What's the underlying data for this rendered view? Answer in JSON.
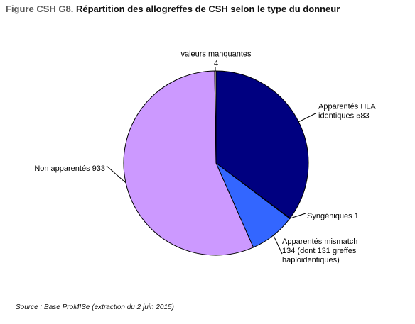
{
  "title": {
    "prefix": "Figure CSH G8.",
    "text": "Répartition des allogreffes de CSH selon le type du donneur"
  },
  "source": "Source : Base ProMISe (extraction du 2 juin 2015)",
  "chart_data": {
    "type": "pie",
    "title": "Figure CSH G8. Répartition des allogreffes de CSH selon le type du donneur",
    "slices": [
      {
        "label_lines": [
          "Apparentés HLA",
          "identiques 583"
        ],
        "value": 583,
        "color": "#000080"
      },
      {
        "label_lines": [
          "Syngéniques 1"
        ],
        "value": 1,
        "color": "#000080"
      },
      {
        "label_lines": [
          "Apparentés mismatch",
          "134 (dont 131 greffes",
          "haploidentiques)"
        ],
        "value": 134,
        "color": "#3366ff"
      },
      {
        "label_lines": [
          "Non apparentés 933"
        ],
        "value": 933,
        "color": "#cc99ff"
      },
      {
        "label_lines": [
          "valeurs manquantes",
          "4"
        ],
        "value": 4,
        "color": "#ffffcc"
      }
    ],
    "legend": "none"
  }
}
